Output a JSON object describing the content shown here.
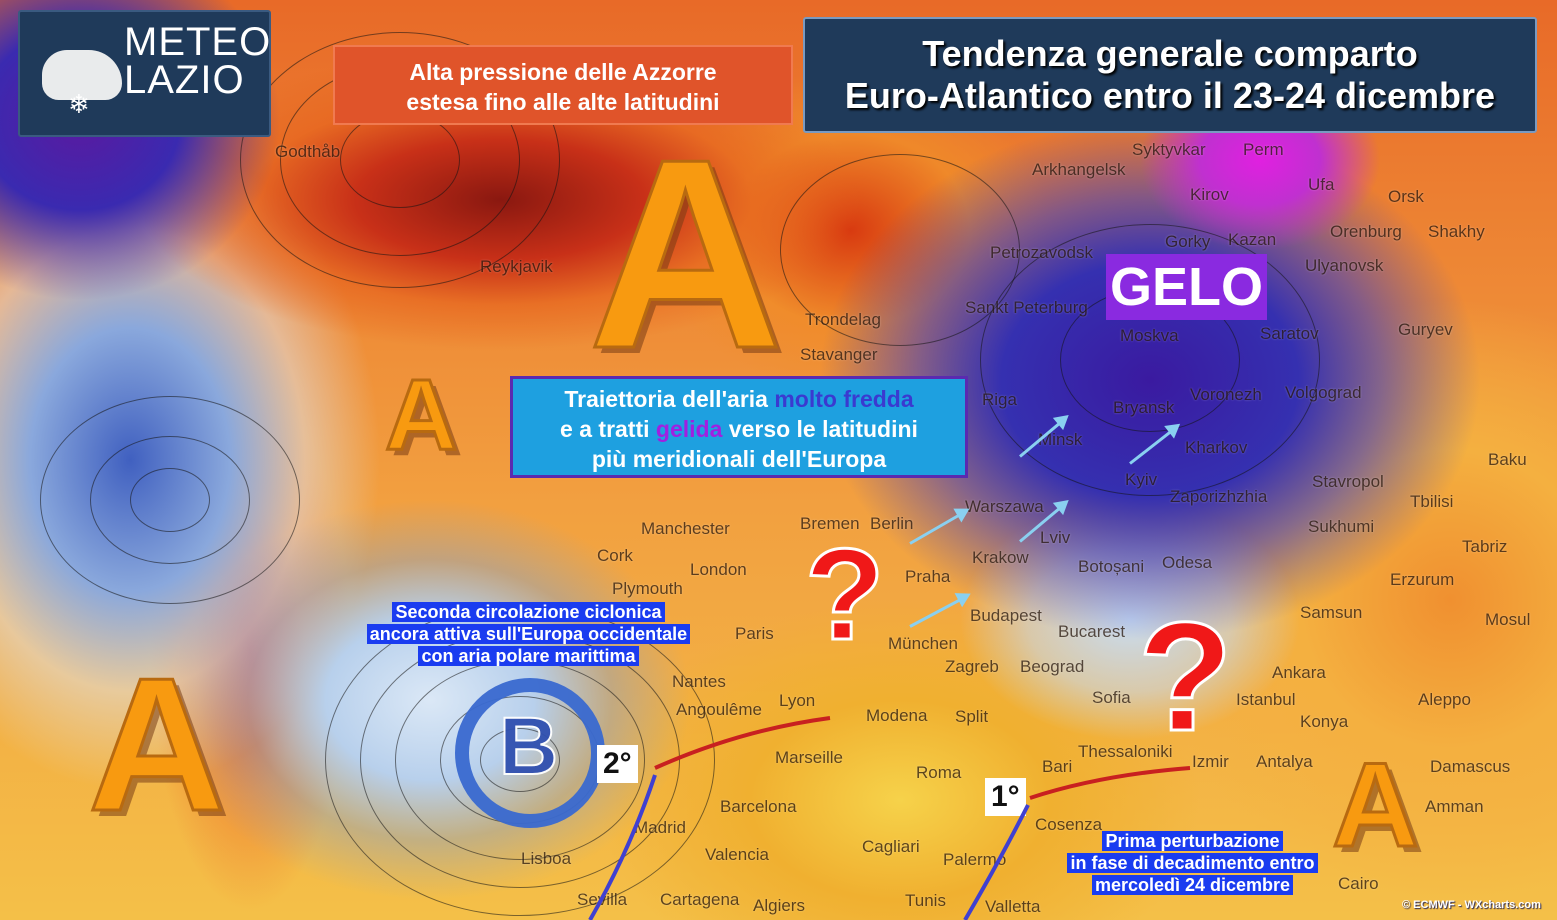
{
  "logo": {
    "text_line1": "METEO",
    "text_line2": "LAZIO"
  },
  "header": {
    "title_line1": "Tendenza generale comparto",
    "title_line2": "Euro-Atlantico entro il 23-24 dicembre"
  },
  "azores_box": {
    "line1": "Alta pressione delle Azzorre",
    "line2": "estesa fino alle alte latitudini"
  },
  "trajectory_box": {
    "part1": "Traiettoria dell'aria ",
    "highlight1": "molto fredda",
    "part2": "e a tratti ",
    "highlight2": "gelida",
    "part3": " verso le latitudini",
    "line3": "più meridionali dell'Europa",
    "highlight1_color": "#3a3ad0",
    "highlight2_color": "#a020e0"
  },
  "gelo_label": "GELO",
  "cyclone_note": {
    "line1": "Seconda circolazione ciclonica",
    "line2": "ancora attiva sull'Europa occidentale",
    "line3": "con aria polare marittima"
  },
  "perturbation_note": {
    "line1": "Prima perturbazione",
    "line2": "in fase di decadimento entro",
    "line3": "mercoledì 24 dicembre"
  },
  "high_pressure_symbol": "A",
  "low_pressure_symbol": "B",
  "question_mark": "?",
  "temps": {
    "west": "2°",
    "south": "1°"
  },
  "credit": "© ECMWF - WXcharts.com",
  "cities": [
    "Godthåb",
    "Arkhangelsk",
    "Syktyvkar",
    "Perm",
    "Kirov",
    "Ufa",
    "Orsk",
    "Gorky",
    "Kazan",
    "Orenburg",
    "Shakhy",
    "Petrozavodsk",
    "Sankt Peterburg",
    "Ulyanovsk",
    "Trondelag",
    "Moskva",
    "Saratov",
    "Guryev",
    "Bryansk",
    "Riga",
    "Minsk",
    "Voronezh",
    "Volgograd",
    "Kharkov",
    "Kyiv",
    "Baku",
    "Zaporizhzhia",
    "Stavropol",
    "Tbilisi",
    "Sukhumi",
    "Tabriz",
    "Erzurum",
    "Samsun",
    "Mosul",
    "Ankara",
    "Aleppo",
    "Konya",
    "Antalya",
    "Damascus",
    "Amman",
    "Izmir",
    "Thessaloniki",
    "Sofia",
    "Istanbul",
    "Bucarest",
    "Botoșani",
    "Odesa",
    "Lviv",
    "Krakow",
    "Warszawa",
    "Praha",
    "Budapest",
    "Zagreb",
    "Beograd",
    "Split",
    "Bremen",
    "Berlin",
    "München",
    "Manchester",
    "London",
    "Plymouth",
    "Cork",
    "Paris",
    "Nantes",
    "Angoulême",
    "Lyon",
    "Modena",
    "Marseille",
    "Roma",
    "Bari",
    "Barcelona",
    "Madrid",
    "Valencia",
    "Lisboa",
    "Sevilla",
    "Cartagena",
    "Algiers",
    "Cagliari",
    "Palermo",
    "Tunis",
    "Valletta",
    "Cosenza",
    "Reykjavik",
    "Stavanger",
    "Cairo"
  ]
}
